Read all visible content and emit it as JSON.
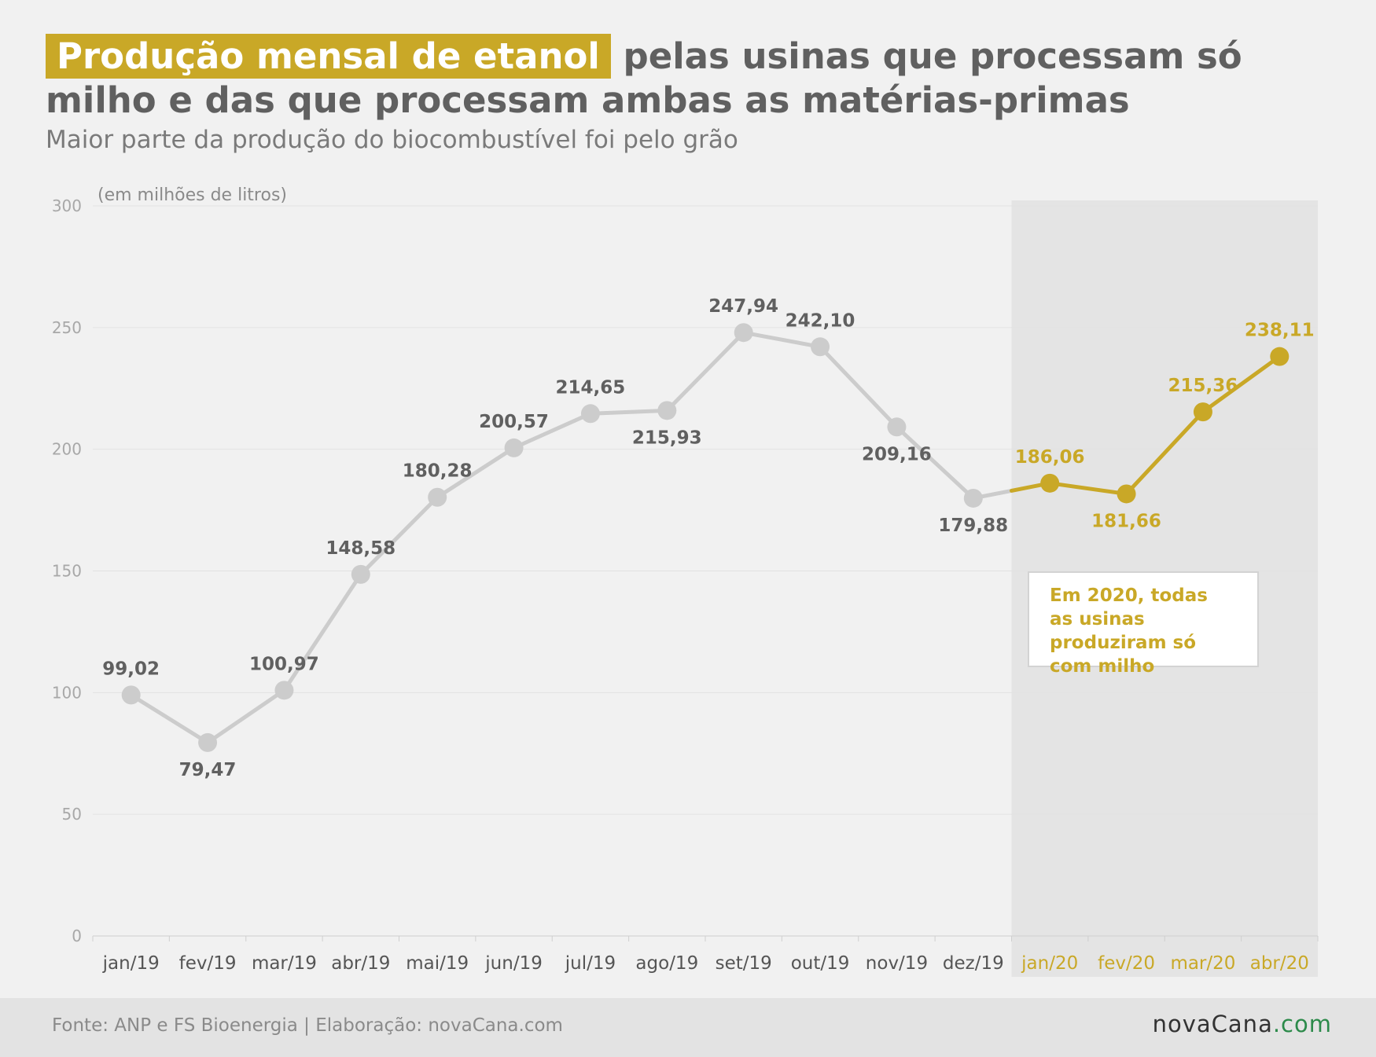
{
  "header": {
    "title_highlight": "Produção mensal de etanol",
    "title_rest": " pelas usinas que processam só milho e das que processam ambas as matérias-primas",
    "subtitle": "Maior parte da produção do biocombustível foi pelo grão"
  },
  "colors": {
    "accent": "#c9a827",
    "gray_series": "#cccccc",
    "label_gray": "#606060",
    "highlight_band": "#e4e4e4"
  },
  "annotation": {
    "text": "Em 2020, todas as usinas produziram só com milho"
  },
  "footer": {
    "source": "Fonte: ANP e FS Bioenergia | Elaboração: novaCana.com",
    "logo_main": "novaCana",
    "logo_suffix": ".com"
  },
  "chart_data": {
    "type": "line",
    "unit_label": "(em milhões de litros)",
    "categories": [
      "jan/19",
      "fev/19",
      "mar/19",
      "abr/19",
      "mai/19",
      "jun/19",
      "jul/19",
      "ago/19",
      "set/19",
      "out/19",
      "nov/19",
      "dez/19",
      "jan/20",
      "fev/20",
      "mar/20",
      "abr/20"
    ],
    "values": [
      99.02,
      79.47,
      100.97,
      148.58,
      180.28,
      200.57,
      214.65,
      215.93,
      247.94,
      242.1,
      209.16,
      179.88,
      186.06,
      181.66,
      215.36,
      238.11
    ],
    "labels": [
      "99,02",
      "79,47",
      "100,97",
      "148,58",
      "180,28",
      "200,57",
      "214,65",
      "215,93",
      "247,94",
      "242,10",
      "209,16",
      "179,88",
      "186,06",
      "181,66",
      "215,36",
      "238,11"
    ],
    "highlight_from_index": 12,
    "ylim": [
      0,
      300
    ],
    "yticks": [
      0,
      50,
      100,
      150,
      200,
      250,
      300
    ],
    "grid": true,
    "legend": "none"
  }
}
